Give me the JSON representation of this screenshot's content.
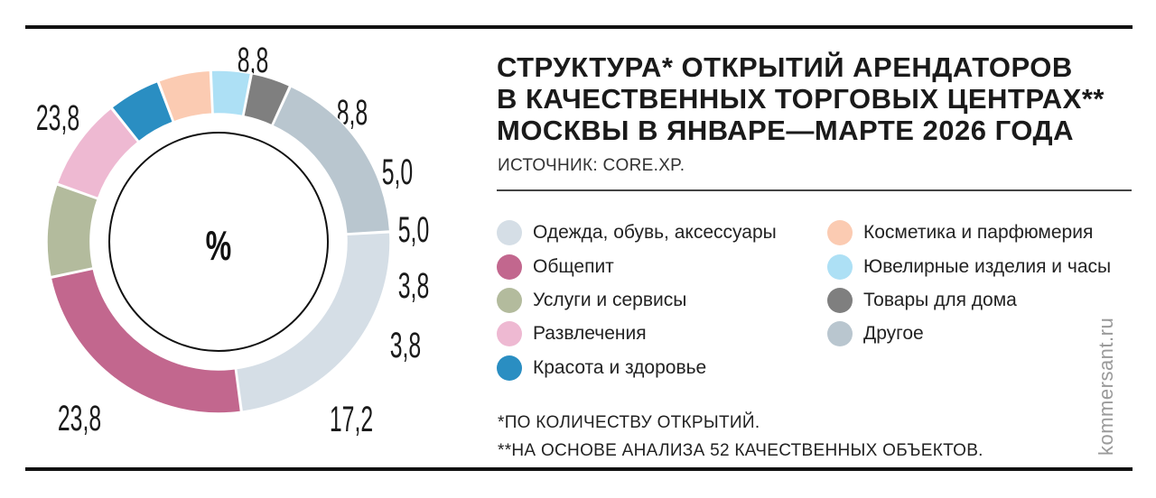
{
  "chart_data": {
    "type": "pie",
    "title_lines": [
      "СТРУКТУРА* ОТКРЫТИЙ АРЕНДАТОРОВ",
      "В КАЧЕСТВЕННЫХ ТОРГОВЫХ ЦЕНТРАХ**",
      "МОСКВЫ В ЯНВАРЕ—МАРТЕ 2026 ГОДА"
    ],
    "source": "ИСТОЧНИК: CORE.XP.",
    "unit": "%",
    "slices": [
      {
        "label": "Одежда, обувь, аксессуары",
        "value": 23.8,
        "value_label": "23,8",
        "color": "#d5dee6"
      },
      {
        "label": "Общепит",
        "value": 23.8,
        "value_label": "23,8",
        "color": "#c2678e"
      },
      {
        "label": "Услуги и сервисы",
        "value": 8.8,
        "value_label": "8,8",
        "color": "#b3bb9d"
      },
      {
        "label": "Развлечения",
        "value": 8.8,
        "value_label": "8,8",
        "color": "#eeb9d2"
      },
      {
        "label": "Красота и здоровье",
        "value": 5.0,
        "value_label": "5,0",
        "color": "#2a8ec2"
      },
      {
        "label": "Косметика и парфюмерия",
        "value": 5.0,
        "value_label": "5,0",
        "color": "#fbcbb2"
      },
      {
        "label": "Ювелирные изделия и часы",
        "value": 3.8,
        "value_label": "3,8",
        "color": "#ade0f5"
      },
      {
        "label": "Товары для дома",
        "value": 3.8,
        "value_label": "3,8",
        "color": "#7f7f7f"
      },
      {
        "label": "Другое",
        "value": 17.2,
        "value_label": "17,2",
        "color": "#b9c6cf"
      }
    ],
    "legend_placement": "right"
  },
  "notes": [
    "*ПО КОЛИЧЕСТВУ ОТКРЫТИЙ.",
    "**НА ОСНОВЕ АНАЛИЗА 52 КАЧЕСТВЕННЫХ ОБЪЕКТОВ."
  ],
  "watermark": "kommersant.ru"
}
